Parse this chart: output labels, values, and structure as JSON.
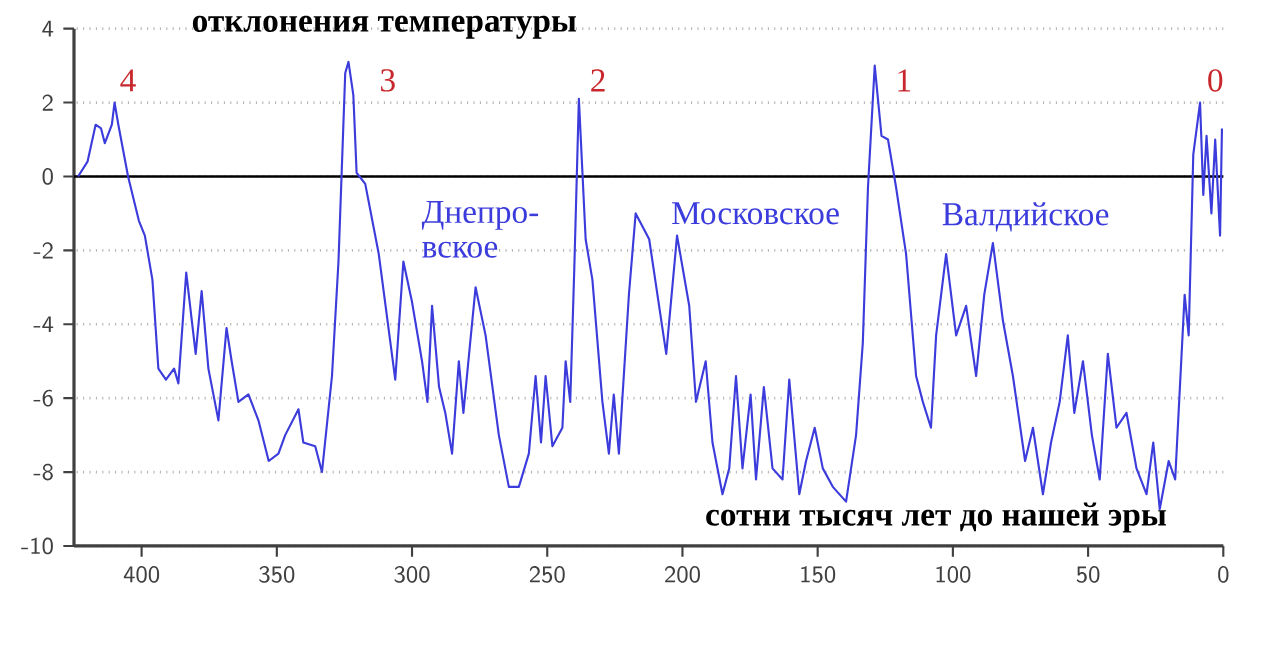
{
  "chart_data": {
    "type": "line",
    "title": "отклонения температуры",
    "xlabel": "сотни тысяч лет до нашей эры",
    "xlim": [
      425,
      0
    ],
    "ylim": [
      -10,
      4
    ],
    "xticks": [
      400,
      350,
      300,
      250,
      200,
      150,
      100,
      50,
      0
    ],
    "yticks": [
      -10,
      -8,
      -6,
      -4,
      -2,
      0,
      2,
      4
    ],
    "grid": "y",
    "marker": "none",
    "line_style": "solid",
    "ref_lines": [
      {
        "axis": "y",
        "value": 0,
        "color": "#000000"
      }
    ],
    "annotations": [
      "4",
      "3",
      "2",
      "1",
      "0",
      "Днепро-вское",
      "Московское",
      "Валдийское"
    ],
    "series": [
      {
        "color": "#3c3cdc",
        "x": [
          423.5,
          420,
          417,
          415,
          413.6,
          411,
          410,
          408.6,
          405,
          401,
          398.8,
          396,
          393.8,
          391,
          388,
          386.4,
          383.5,
          380,
          377.8,
          375.3,
          371.6,
          368.6,
          366.7,
          364.2,
          360.5,
          356.8,
          353,
          349.4,
          346.9,
          342,
          340.2,
          335.8,
          333.3,
          329.6,
          327.2,
          324.7,
          323.5,
          321.7,
          320.5,
          317.3,
          312.3,
          306.2,
          303.2,
          300,
          296.3,
          294.3,
          292.6,
          290,
          287.7,
          285.2,
          282.7,
          281,
          278.5,
          276.5,
          272.8,
          267.9,
          264.2,
          260.5,
          256.8,
          254.3,
          252.3,
          250.6,
          248.1,
          244.4,
          243.2,
          241.5,
          240,
          238.3,
          235.8,
          233.3,
          229.6,
          227.2,
          225.4,
          223.5,
          219.8,
          217.3,
          212.3,
          206,
          202,
          197.5,
          195,
          191.4,
          188.9,
          185.2,
          182.7,
          180.2,
          177.8,
          174.8,
          172.8,
          169.9,
          166.7,
          163,
          160.5,
          156.8,
          154.3,
          151.1,
          148.1,
          144.4,
          139.5,
          135.8,
          133.3,
          131.4,
          128.9,
          126.4,
          124,
          121,
          117.3,
          113.6,
          111.1,
          108.1,
          106.2,
          102.5,
          98.8,
          95.1,
          91.4,
          88.4,
          85.2,
          81.5,
          77.8,
          73.3,
          70.4,
          66.7,
          63.7,
          60.5,
          57.5,
          55.1,
          51.9,
          48.6,
          45.7,
          42.7,
          39.5,
          35.8,
          32.1,
          28.4,
          25.9,
          23.5,
          20.2,
          17.8,
          14.3,
          12.8,
          11.1,
          8.6,
          7.4,
          6.2,
          4.4,
          3.0,
          1.2,
          0.5
        ],
        "values": [
          0,
          0.4,
          1.4,
          1.3,
          0.9,
          1.4,
          2.0,
          1.4,
          0,
          -1.2,
          -1.6,
          -2.8,
          -5.2,
          -5.5,
          -5.2,
          -5.6,
          -2.6,
          -4.8,
          -3.1,
          -5.2,
          -6.6,
          -4.1,
          -5.0,
          -6.1,
          -5.9,
          -6.6,
          -7.7,
          -7.5,
          -7.0,
          -6.3,
          -7.2,
          -7.3,
          -8.0,
          -5.4,
          -2.3,
          2.8,
          3.1,
          2.2,
          0.1,
          -0.2,
          -2.1,
          -5.5,
          -2.3,
          -3.4,
          -5.0,
          -6.1,
          -3.5,
          -5.7,
          -6.4,
          -7.5,
          -5.0,
          -6.4,
          -4.5,
          -3.0,
          -4.3,
          -7.0,
          -8.4,
          -8.4,
          -7.5,
          -5.4,
          -7.2,
          -5.4,
          -7.3,
          -6.8,
          -5.0,
          -6.1,
          -2.5,
          2.1,
          -1.7,
          -2.8,
          -6.1,
          -7.5,
          -5.9,
          -7.5,
          -3.2,
          -1.0,
          -1.7,
          -4.8,
          -1.6,
          -3.5,
          -6.1,
          -5.0,
          -7.2,
          -8.6,
          -7.9,
          -5.4,
          -7.9,
          -5.9,
          -8.2,
          -5.7,
          -7.9,
          -8.2,
          -5.5,
          -8.6,
          -7.7,
          -6.8,
          -7.9,
          -8.4,
          -8.8,
          -7.0,
          -4.5,
          -0.3,
          3.0,
          1.1,
          1.0,
          -0.3,
          -2.1,
          -5.4,
          -6.1,
          -6.8,
          -4.3,
          -2.1,
          -4.3,
          -3.5,
          -5.4,
          -3.2,
          -1.8,
          -3.9,
          -5.4,
          -7.7,
          -6.8,
          -8.6,
          -7.2,
          -6.1,
          -4.3,
          -6.4,
          -5.0,
          -7.0,
          -8.2,
          -4.8,
          -6.8,
          -6.4,
          -7.9,
          -8.6,
          -7.2,
          -9.0,
          -7.7,
          -8.2,
          -3.2,
          -4.3,
          0.6,
          2.0,
          -0.5,
          1.1,
          -1.0,
          1.0,
          -1.6,
          1.3
        ]
      }
    ]
  }
}
